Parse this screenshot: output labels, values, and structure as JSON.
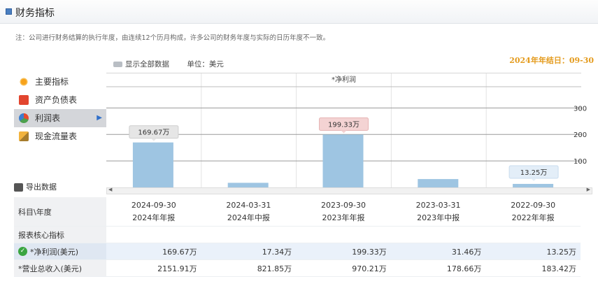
{
  "header": {
    "title": "财务指标"
  },
  "note": "注：公司进行财务结算的执行年度，由连续12个历月构成，许多公司的财务年度与实际的日历年度不一致。",
  "fiscal_year_end": "2024年年结日：09-30",
  "options": {
    "show_all": "显示全部数据",
    "unit": "单位：美元"
  },
  "sidebar": {
    "items": [
      {
        "label": "主要指标",
        "icon": "sun-icon"
      },
      {
        "label": "资产负债表",
        "icon": "document-icon"
      },
      {
        "label": "利润表",
        "icon": "pie-chart-icon",
        "active": true
      },
      {
        "label": "现金流量表",
        "icon": "cash-icon"
      }
    ],
    "export": "导出数据"
  },
  "chart_data": {
    "type": "bar",
    "title": "*净利润",
    "categories": [
      "2024-09-30",
      "2024-03-31",
      "2023-09-30",
      "2023-03-31",
      "2022-09-30"
    ],
    "values": [
      169.67,
      17.34,
      199.33,
      31.46,
      13.25
    ],
    "data_labels": [
      "169.67万",
      "",
      "199.33万",
      "",
      "13.25万"
    ],
    "y_ticks": [
      100,
      200,
      300
    ],
    "ylim": [
      0,
      380
    ],
    "bar_color": "#9ec5e2",
    "grid": true
  },
  "table": {
    "header_label": "科目\\年度",
    "columns": [
      {
        "date": "2024-09-30",
        "type": "2024年年报"
      },
      {
        "date": "2024-03-31",
        "type": "2024年中报"
      },
      {
        "date": "2023-09-30",
        "type": "2023年年报"
      },
      {
        "date": "2023-03-31",
        "type": "2023年中报"
      },
      {
        "date": "2022-09-30",
        "type": "2022年年报"
      }
    ],
    "section": "报表核心指标",
    "rows": [
      {
        "label": "*净利润(美元)",
        "values": [
          "169.67万",
          "17.34万",
          "199.33万",
          "31.46万",
          "13.25万"
        ]
      },
      {
        "label": "*营业总收入(美元)",
        "values": [
          "2151.91万",
          "821.85万",
          "970.21万",
          "178.66万",
          "183.42万"
        ]
      }
    ]
  }
}
